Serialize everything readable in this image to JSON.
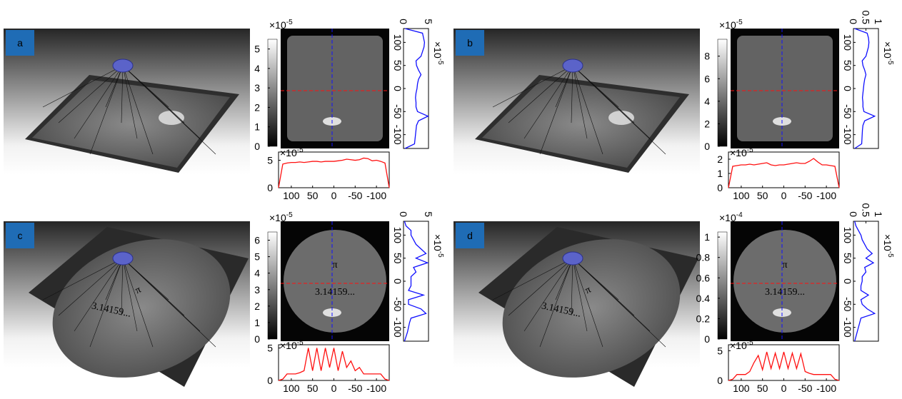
{
  "panels": [
    {
      "label": "a",
      "colorbar": {
        "scale": {
          "base": "×10",
          "power": "-5"
        },
        "lim": [
          0,
          5.5
        ],
        "ticks": [
          0,
          1,
          2,
          3,
          4,
          5
        ]
      },
      "v_profile": {
        "scale": {
          "base": "×10",
          "power": "-5"
        },
        "lim": [
          0,
          5
        ],
        "ticks": [
          0,
          5
        ],
        "pos_lim": [
          130,
          -130
        ],
        "pos_ticks": [
          100,
          50,
          0,
          -50,
          -100
        ],
        "positions": [
          130,
          120,
          110,
          100,
          90,
          80,
          70,
          60,
          50,
          40,
          30,
          20,
          10,
          0,
          -10,
          -20,
          -30,
          -40,
          -50,
          -60,
          -70,
          -80,
          -90,
          -100,
          -110,
          -120,
          -130
        ],
        "values": [
          0.3,
          3.8,
          4.0,
          4.2,
          4.1,
          3.8,
          3.5,
          2.5,
          2.6,
          3.0,
          3.5,
          3.0,
          2.8,
          2.7,
          2.5,
          2.4,
          2.5,
          2.5,
          2.8,
          4.9,
          3.0,
          2.6,
          2.5,
          2.4,
          2.3,
          2.2,
          0.3
        ]
      },
      "h_profile": {
        "scale": {
          "base": "×10",
          "power": "-5"
        },
        "lim": [
          0,
          6.5
        ],
        "ticks": [
          0,
          5
        ],
        "pos_lim": [
          130,
          -130
        ],
        "pos_ticks": [
          100,
          50,
          0,
          -50,
          -100
        ],
        "positions": [
          130,
          120,
          110,
          100,
          90,
          80,
          70,
          60,
          50,
          40,
          30,
          20,
          10,
          0,
          -10,
          -20,
          -30,
          -40,
          -50,
          -60,
          -70,
          -80,
          -90,
          -100,
          -110,
          -120,
          -130
        ],
        "values": [
          0,
          4.3,
          4.5,
          4.6,
          4.6,
          4.7,
          4.6,
          4.7,
          4.8,
          4.8,
          4.7,
          4.8,
          4.8,
          4.8,
          4.9,
          5.0,
          5.2,
          5.1,
          5.0,
          5.1,
          5.4,
          5.3,
          4.9,
          5.0,
          4.8,
          4.5,
          0
        ]
      }
    },
    {
      "label": "b",
      "colorbar": {
        "scale": {
          "base": "×10",
          "power": "-5"
        },
        "lim": [
          0,
          9.5
        ],
        "ticks": [
          0,
          2,
          4,
          6,
          8
        ]
      },
      "v_profile": {
        "scale": {
          "base": "×10",
          "power": "-5"
        },
        "lim": [
          0,
          1
        ],
        "ticks": [
          0,
          0.5,
          1
        ],
        "pos_lim": [
          130,
          -130
        ],
        "pos_ticks": [
          100,
          50,
          0,
          -50,
          -100
        ],
        "positions": [
          130,
          120,
          110,
          100,
          90,
          80,
          70,
          60,
          50,
          40,
          30,
          20,
          10,
          0,
          -10,
          -20,
          -30,
          -40,
          -50,
          -60,
          -70,
          -80,
          -90,
          -100,
          -110,
          -120,
          -130
        ],
        "values": [
          0.05,
          0.55,
          0.6,
          0.62,
          0.6,
          0.55,
          0.5,
          0.35,
          0.38,
          0.45,
          0.5,
          0.45,
          0.42,
          0.4,
          0.38,
          0.36,
          0.38,
          0.38,
          0.42,
          0.85,
          0.45,
          0.38,
          0.36,
          0.35,
          0.34,
          0.33,
          0.05
        ]
      },
      "h_profile": {
        "scale": {
          "base": "×10",
          "power": "-5"
        },
        "lim": [
          0,
          2.5
        ],
        "ticks": [
          0,
          1,
          2
        ],
        "pos_lim": [
          130,
          -130
        ],
        "pos_ticks": [
          100,
          50,
          0,
          -50,
          -100
        ],
        "positions": [
          130,
          120,
          110,
          100,
          90,
          80,
          70,
          60,
          50,
          40,
          30,
          20,
          10,
          0,
          -10,
          -20,
          -30,
          -40,
          -50,
          -60,
          -70,
          -80,
          -90,
          -100,
          -110,
          -120,
          -130
        ],
        "values": [
          0,
          1.5,
          1.55,
          1.6,
          1.6,
          1.65,
          1.6,
          1.65,
          1.7,
          1.75,
          1.6,
          1.55,
          1.6,
          1.6,
          1.65,
          1.7,
          1.75,
          1.7,
          1.7,
          1.85,
          2.05,
          1.8,
          1.6,
          1.6,
          1.55,
          1.5,
          0
        ]
      }
    },
    {
      "label": "c",
      "colorbar": {
        "scale": {
          "base": "×10",
          "power": "-5"
        },
        "lim": [
          0,
          6.5
        ],
        "ticks": [
          0,
          1,
          2,
          3,
          4,
          5,
          6
        ]
      },
      "image_text": [
        "π",
        "3.14159..."
      ],
      "v_profile": {
        "scale": {
          "base": "×10",
          "power": "-5"
        },
        "lim": [
          0,
          5
        ],
        "ticks": [
          0,
          5
        ],
        "pos_lim": [
          130,
          -130
        ],
        "pos_ticks": [
          100,
          50,
          0,
          -50,
          -100
        ],
        "positions": [
          130,
          120,
          110,
          100,
          90,
          80,
          70,
          60,
          50,
          40,
          30,
          20,
          10,
          0,
          -10,
          -20,
          -30,
          -40,
          -50,
          -60,
          -70,
          -80,
          -90,
          -100,
          -110,
          -120,
          -130
        ],
        "values": [
          0.2,
          0.5,
          1.5,
          1.5,
          2.0,
          2.5,
          3.5,
          4.5,
          2.5,
          4.8,
          2.0,
          2.5,
          1.5,
          1.5,
          1.5,
          1.0,
          4.0,
          1.0,
          1.0,
          3.5,
          4.5,
          1.5,
          1.2,
          1.0,
          0.8,
          0.5,
          0.2
        ]
      },
      "h_profile": {
        "scale": {
          "base": "×10",
          "power": "-5"
        },
        "lim": [
          0,
          5.5
        ],
        "ticks": [
          0,
          5
        ],
        "pos_lim": [
          130,
          -130
        ],
        "pos_ticks": [
          100,
          50,
          0,
          -50,
          -100
        ],
        "positions": [
          130,
          120,
          110,
          100,
          90,
          80,
          70,
          60,
          50,
          40,
          30,
          20,
          10,
          0,
          -10,
          -20,
          -30,
          -40,
          -50,
          -60,
          -70,
          -80,
          -90,
          -100,
          -110,
          -120,
          -130
        ],
        "values": [
          0,
          0.2,
          1.0,
          1.0,
          1.0,
          1.2,
          1.5,
          5.0,
          1.5,
          5.0,
          1.5,
          5.0,
          2.0,
          5.0,
          1.5,
          4.5,
          2.0,
          3.0,
          1.5,
          2.0,
          1.0,
          1.0,
          1.0,
          1.0,
          1.0,
          0.2,
          0
        ]
      }
    },
    {
      "label": "d",
      "colorbar": {
        "scale": {
          "base": "×10",
          "power": "-4"
        },
        "lim": [
          0,
          1.05
        ],
        "ticks": [
          0,
          0.2,
          0.4,
          0.6,
          0.8,
          1
        ]
      },
      "image_text": [
        "π",
        "3.14159..."
      ],
      "v_profile": {
        "scale": {
          "base": "×10",
          "power": "-5"
        },
        "lim": [
          0,
          1
        ],
        "ticks": [
          0,
          0.5,
          1
        ],
        "pos_lim": [
          130,
          -130
        ],
        "pos_ticks": [
          100,
          50,
          0,
          -50,
          -100
        ],
        "positions": [
          130,
          120,
          110,
          100,
          90,
          80,
          70,
          60,
          50,
          40,
          30,
          20,
          10,
          0,
          -10,
          -20,
          -30,
          -40,
          -50,
          -60,
          -70,
          -80,
          -90,
          -100,
          -110,
          -120,
          -130
        ],
        "values": [
          0.05,
          0.1,
          0.2,
          0.3,
          0.35,
          0.45,
          0.55,
          0.75,
          0.5,
          0.8,
          0.45,
          0.5,
          0.35,
          0.35,
          0.3,
          0.3,
          0.6,
          0.3,
          0.35,
          0.55,
          0.85,
          0.3,
          0.25,
          0.2,
          0.15,
          0.1,
          0.05
        ]
      },
      "h_profile": {
        "scale": {
          "base": "×10",
          "power": "-5"
        },
        "lim": [
          0,
          6
        ],
        "ticks": [
          0,
          5
        ],
        "pos_lim": [
          130,
          -130
        ],
        "pos_ticks": [
          100,
          50,
          0,
          -50,
          -100
        ],
        "positions": [
          130,
          120,
          110,
          100,
          90,
          80,
          70,
          60,
          50,
          40,
          30,
          20,
          10,
          0,
          -10,
          -20,
          -30,
          -40,
          -50,
          -60,
          -70,
          -80,
          -90,
          -100,
          -110,
          -120,
          -130
        ],
        "values": [
          0,
          0.2,
          1.0,
          1.0,
          1.0,
          1.5,
          3.0,
          4.2,
          1.8,
          4.8,
          2.0,
          4.6,
          2.0,
          4.8,
          2.0,
          4.6,
          2.0,
          4.5,
          1.5,
          1.2,
          1.0,
          1.0,
          1.0,
          1.0,
          1.0,
          0.2,
          0
        ]
      }
    }
  ]
}
